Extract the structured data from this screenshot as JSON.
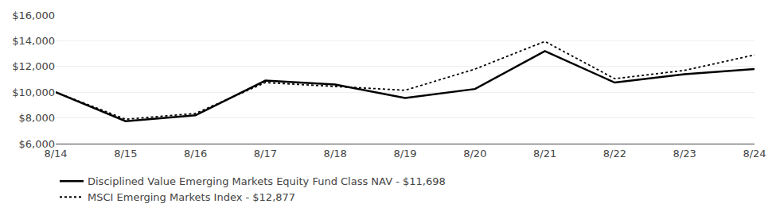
{
  "chart_data": {
    "type": "line",
    "categories": [
      "8/14",
      "8/15",
      "8/16",
      "8/17",
      "8/18",
      "8/19",
      "8/20",
      "8/21",
      "8/22",
      "8/23",
      "8/24"
    ],
    "series": [
      {
        "name": "Disciplined Value Emerging Markets Equity Fund Class NAV - $11,698",
        "color": "#000000",
        "line_style": "solid",
        "values": [
          10000,
          7750,
          8200,
          10900,
          10600,
          9550,
          10250,
          13200,
          10750,
          11400,
          11800
        ]
      },
      {
        "name": "MSCI Emerging Markets Index - $12,877",
        "color": "#000000",
        "line_style": "dotted",
        "values": [
          10000,
          7900,
          8350,
          10750,
          10450,
          10150,
          11800,
          13950,
          11050,
          11700,
          12900
        ]
      }
    ],
    "ylim": [
      6000,
      16000
    ],
    "yticks": [
      {
        "value": 6000,
        "label": "$6,000"
      },
      {
        "value": 8000,
        "label": "$8,000"
      },
      {
        "value": 10000,
        "label": "$10,000"
      },
      {
        "value": 12000,
        "label": "$12,000"
      },
      {
        "value": 14000,
        "label": "$14,000"
      },
      {
        "value": 16000,
        "label": "$16,000"
      }
    ],
    "grid": true,
    "legend": "lower left"
  }
}
